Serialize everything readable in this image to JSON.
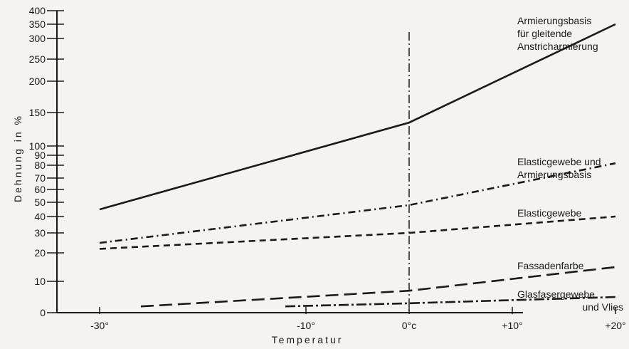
{
  "chart_data": {
    "type": "line",
    "title": "",
    "xlabel": "Temperatur",
    "ylabel": "Dehnung in %",
    "xlim": [
      -35,
      20
    ],
    "ylim": [
      0,
      400
    ],
    "y_scale": "nonlinear",
    "grid": false,
    "legend": "labels at line ends (right)",
    "x_tick_labels": [
      {
        "value": -30,
        "text": "-30°"
      },
      {
        "value": -10,
        "text": "-10°"
      },
      {
        "value": 0,
        "text": "0°c"
      },
      {
        "value": 10,
        "text": "+10°"
      },
      {
        "value": 20,
        "text": "+20°"
      }
    ],
    "y_ticks": [
      0,
      10,
      20,
      30,
      40,
      50,
      60,
      70,
      80,
      90,
      100,
      150,
      200,
      250,
      300,
      350,
      400
    ],
    "reference_line": {
      "x": 0,
      "style": "dash-dot"
    },
    "series": [
      {
        "name": "Armierungsbasis für gleitende Anstricharmierung",
        "label_lines": [
          "Armierungsbasis",
          "für gleitende",
          "Anstricharmierung"
        ],
        "style": "solid",
        "x": [
          -30,
          0,
          20
        ],
        "y": [
          45,
          135,
          350
        ]
      },
      {
        "name": "Elasticgewebe und Armierungsbasis",
        "label_lines": [
          "Elasticgewebe und",
          "Armierungsbasis"
        ],
        "style": "dash-dot",
        "x": [
          -30,
          0,
          20
        ],
        "y": [
          25,
          48,
          82
        ]
      },
      {
        "name": "Elasticgewebe",
        "label_lines": [
          "Elasticgewebe"
        ],
        "style": "dashed",
        "x": [
          -30,
          0,
          20
        ],
        "y": [
          22,
          30,
          40
        ]
      },
      {
        "name": "Fassadenfarbe",
        "label_lines": [
          "Fassadenfarbe"
        ],
        "style": "long-dash",
        "x": [
          -26,
          0,
          20
        ],
        "y": [
          2,
          7,
          15
        ]
      },
      {
        "name": "Glasfasergewebe und Vlies",
        "label_lines": [
          "Glasfasergewebe",
          "und Vlies"
        ],
        "style": "long-dash-dot",
        "x": [
          -12,
          0,
          20
        ],
        "y": [
          2,
          3,
          5
        ]
      }
    ]
  }
}
